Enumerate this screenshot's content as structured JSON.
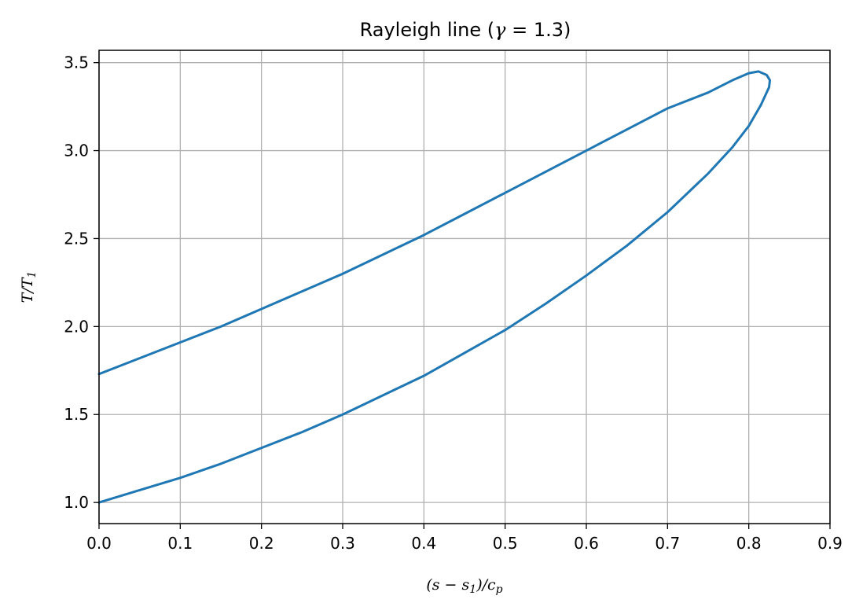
{
  "chart_data": {
    "type": "line",
    "title": "Rayleigh line (γ = 1.3)",
    "xlabel": "(s − s₁)/cₚ",
    "ylabel": "T/T₁",
    "xlim": [
      0.0,
      0.9
    ],
    "ylim": [
      0.88,
      3.57
    ],
    "xticks": [
      "0.0",
      "0.1",
      "0.2",
      "0.3",
      "0.4",
      "0.5",
      "0.6",
      "0.7",
      "0.8",
      "0.9"
    ],
    "yticks": [
      "1.0",
      "1.5",
      "2.0",
      "2.5",
      "3.0",
      "3.5"
    ],
    "grid": true,
    "series": [
      {
        "color": "#1f77b4",
        "x": [
          0.0,
          0.05,
          0.1,
          0.15,
          0.2,
          0.25,
          0.3,
          0.35,
          0.4,
          0.45,
          0.5,
          0.55,
          0.6,
          0.65,
          0.7,
          0.75,
          0.78,
          0.8,
          0.815,
          0.825,
          0.826,
          0.822,
          0.812,
          0.8,
          0.78,
          0.75,
          0.7,
          0.65,
          0.6,
          0.55,
          0.5,
          0.45,
          0.4,
          0.35,
          0.3,
          0.25,
          0.2,
          0.15,
          0.1,
          0.05,
          0.0
        ],
        "y": [
          1.0,
          1.07,
          1.14,
          1.22,
          1.31,
          1.4,
          1.5,
          1.61,
          1.72,
          1.85,
          1.98,
          2.13,
          2.29,
          2.46,
          2.65,
          2.87,
          3.02,
          3.14,
          3.26,
          3.36,
          3.4,
          3.43,
          3.45,
          3.44,
          3.4,
          3.33,
          3.24,
          3.12,
          3.0,
          2.88,
          2.76,
          2.64,
          2.52,
          2.41,
          2.3,
          2.2,
          2.1,
          2.0,
          1.91,
          1.82,
          1.73
        ]
      }
    ]
  }
}
